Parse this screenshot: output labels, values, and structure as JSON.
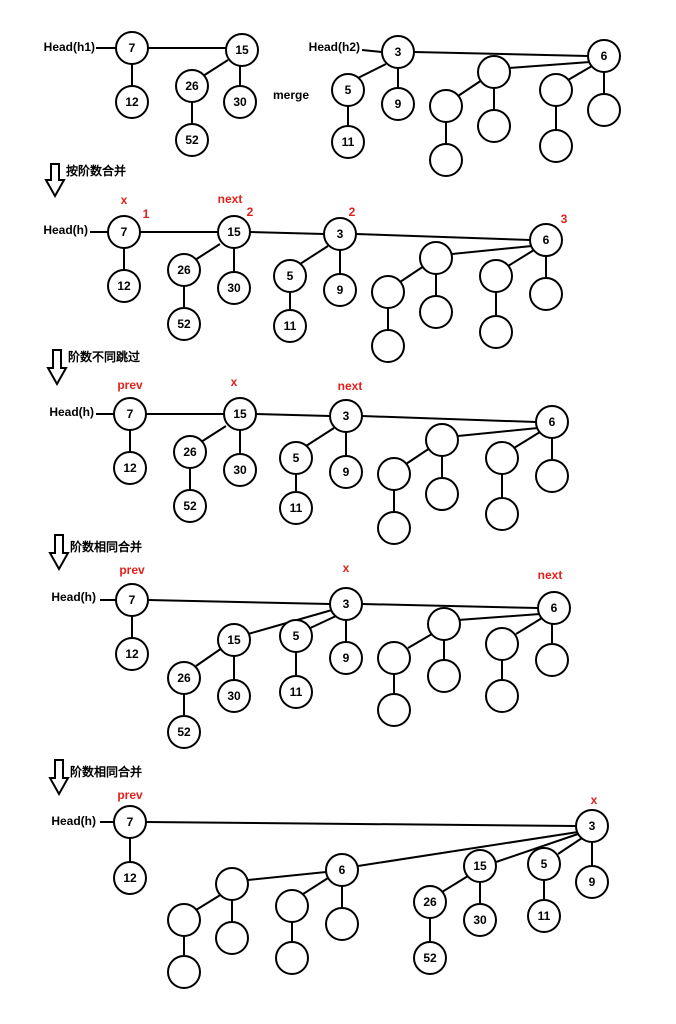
{
  "colors": {
    "ink": "#000000",
    "marker": "#e0201c",
    "background": "#ffffff"
  },
  "top": {
    "head1": "Head(h1)",
    "head2": "Head(h2)",
    "merge_label": "merge",
    "tree1": [
      "7",
      "15",
      "12",
      "26",
      "30",
      "52"
    ],
    "tree2": [
      "3",
      "6",
      "5",
      "9",
      "11",
      "",
      "",
      "",
      "",
      "",
      "",
      "",
      ""
    ]
  },
  "panels": [
    {
      "step_label": "按阶数合并",
      "head": "Head(h)",
      "markers": {
        "x": "x",
        "next": "next",
        "degree_7": "1",
        "degree_15": "2",
        "degree_3": "2",
        "degree_6": "3"
      },
      "nodes": [
        "7",
        "15",
        "3",
        "6",
        "12",
        "26",
        "30",
        "52",
        "5",
        "9",
        "11",
        "",
        "",
        "",
        "",
        "",
        "",
        "",
        ""
      ]
    },
    {
      "step_label": "阶数不同跳过",
      "head": "Head(h)",
      "markers": {
        "prev": "prev",
        "x": "x",
        "next": "next"
      },
      "nodes": [
        "7",
        "15",
        "3",
        "6",
        "12",
        "26",
        "30",
        "52",
        "5",
        "9",
        "11",
        "",
        "",
        "",
        "",
        "",
        "",
        "",
        ""
      ]
    },
    {
      "step_label": "阶数相同合并",
      "head": "Head(h)",
      "markers": {
        "prev": "prev",
        "x": "x",
        "next": "next"
      },
      "nodes": [
        "7",
        "3",
        "6",
        "12",
        "15",
        "5",
        "9",
        "26",
        "30",
        "11",
        "52",
        "",
        "",
        "",
        "",
        "",
        "",
        "",
        ""
      ]
    },
    {
      "step_label": "阶数相同合并",
      "head": "Head(h)",
      "markers": {
        "prev": "prev",
        "x": "x"
      },
      "nodes": [
        "7",
        "3",
        "12",
        "6",
        "15",
        "5",
        "9",
        "26",
        "30",
        "11",
        "52",
        "",
        "",
        "",
        "",
        "",
        "",
        "",
        ""
      ]
    }
  ],
  "icons": {
    "step_arrow": "down-arrow-icon"
  }
}
